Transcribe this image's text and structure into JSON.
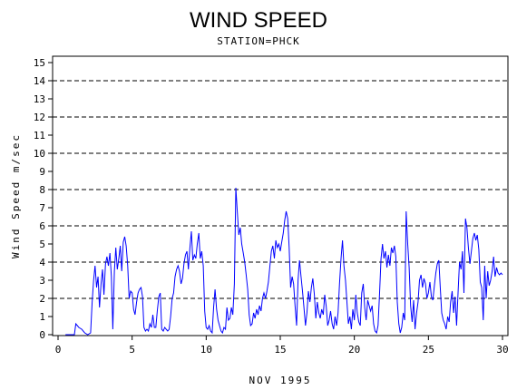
{
  "chart_data": {
    "type": "line",
    "title": "WIND SPEED",
    "subtitle": "STATION=PHCK",
    "xlabel": "NOV 1995",
    "ylabel": "Wind Speed m/sec",
    "xlim": [
      0,
      30
    ],
    "ylim": [
      0,
      15
    ],
    "x_ticks": [
      0,
      5,
      10,
      15,
      20,
      25,
      30
    ],
    "y_ticks": [
      0,
      1,
      2,
      3,
      4,
      5,
      6,
      7,
      8,
      9,
      10,
      11,
      12,
      13,
      14,
      15
    ],
    "dashed_reference_lines": [
      2,
      4,
      6,
      8,
      10,
      12,
      14
    ],
    "series": [
      {
        "color": "#0000ff",
        "points": [
          [
            0.5,
            0.0
          ],
          [
            1.1,
            0.0
          ],
          [
            1.2,
            0.6
          ],
          [
            1.4,
            0.4
          ],
          [
            1.6,
            0.3
          ],
          [
            1.8,
            0.1
          ],
          [
            2.0,
            0.0
          ],
          [
            2.2,
            0.1
          ],
          [
            2.3,
            1.8
          ],
          [
            2.4,
            3.0
          ],
          [
            2.5,
            3.8
          ],
          [
            2.6,
            2.6
          ],
          [
            2.7,
            3.2
          ],
          [
            2.8,
            1.5
          ],
          [
            2.9,
            2.8
          ],
          [
            3.0,
            3.6
          ],
          [
            3.1,
            2.2
          ],
          [
            3.2,
            3.9
          ],
          [
            3.3,
            4.3
          ],
          [
            3.4,
            3.8
          ],
          [
            3.5,
            4.5
          ],
          [
            3.6,
            3.2
          ],
          [
            3.7,
            0.3
          ],
          [
            3.8,
            3.5
          ],
          [
            3.9,
            4.8
          ],
          [
            4.0,
            3.6
          ],
          [
            4.1,
            4.2
          ],
          [
            4.2,
            4.9
          ],
          [
            4.3,
            3.5
          ],
          [
            4.4,
            5.1
          ],
          [
            4.5,
            5.4
          ],
          [
            4.6,
            4.9
          ],
          [
            4.7,
            3.8
          ],
          [
            4.8,
            2.0
          ],
          [
            4.9,
            2.4
          ],
          [
            5.0,
            2.3
          ],
          [
            5.1,
            1.4
          ],
          [
            5.2,
            1.1
          ],
          [
            5.3,
            1.8
          ],
          [
            5.4,
            2.3
          ],
          [
            5.5,
            2.5
          ],
          [
            5.6,
            2.6
          ],
          [
            5.7,
            2.1
          ],
          [
            5.8,
            0.4
          ],
          [
            5.9,
            0.2
          ],
          [
            6.0,
            0.3
          ],
          [
            6.1,
            0.2
          ],
          [
            6.2,
            0.6
          ],
          [
            6.3,
            0.4
          ],
          [
            6.4,
            1.1
          ],
          [
            6.5,
            0.4
          ],
          [
            6.6,
            0.4
          ],
          [
            6.7,
            1.3
          ],
          [
            6.8,
            2.1
          ],
          [
            6.9,
            2.3
          ],
          [
            7.0,
            0.3
          ],
          [
            7.1,
            0.2
          ],
          [
            7.2,
            0.4
          ],
          [
            7.3,
            0.3
          ],
          [
            7.4,
            0.2
          ],
          [
            7.5,
            0.3
          ],
          [
            7.6,
            1.0
          ],
          [
            7.7,
            2.0
          ],
          [
            7.8,
            2.3
          ],
          [
            7.9,
            3.2
          ],
          [
            8.0,
            3.6
          ],
          [
            8.1,
            3.8
          ],
          [
            8.2,
            3.5
          ],
          [
            8.3,
            2.8
          ],
          [
            8.4,
            3.1
          ],
          [
            8.5,
            3.9
          ],
          [
            8.6,
            4.4
          ],
          [
            8.7,
            4.6
          ],
          [
            8.8,
            3.6
          ],
          [
            8.9,
            4.8
          ],
          [
            9.0,
            5.7
          ],
          [
            9.1,
            4.1
          ],
          [
            9.2,
            4.4
          ],
          [
            9.3,
            4.2
          ],
          [
            9.4,
            5.0
          ],
          [
            9.5,
            5.6
          ],
          [
            9.6,
            4.2
          ],
          [
            9.7,
            4.6
          ],
          [
            9.8,
            3.8
          ],
          [
            9.9,
            1.3
          ],
          [
            10.0,
            0.4
          ],
          [
            10.1,
            0.3
          ],
          [
            10.2,
            0.5
          ],
          [
            10.3,
            0.2
          ],
          [
            10.4,
            0.1
          ],
          [
            10.5,
            1.5
          ],
          [
            10.6,
            2.5
          ],
          [
            10.7,
            1.4
          ],
          [
            10.8,
            0.8
          ],
          [
            10.9,
            0.5
          ],
          [
            11.0,
            0.2
          ],
          [
            11.1,
            0.1
          ],
          [
            11.2,
            0.4
          ],
          [
            11.3,
            0.3
          ],
          [
            11.4,
            1.5
          ],
          [
            11.5,
            0.8
          ],
          [
            11.6,
            0.9
          ],
          [
            11.7,
            1.5
          ],
          [
            11.8,
            1.1
          ],
          [
            11.9,
            2.8
          ],
          [
            12.0,
            8.1
          ],
          [
            12.1,
            6.8
          ],
          [
            12.2,
            5.5
          ],
          [
            12.3,
            5.9
          ],
          [
            12.4,
            5.0
          ],
          [
            12.5,
            4.5
          ],
          [
            12.6,
            4.0
          ],
          [
            12.7,
            3.3
          ],
          [
            12.8,
            2.5
          ],
          [
            12.9,
            1.1
          ],
          [
            13.0,
            0.5
          ],
          [
            13.1,
            0.6
          ],
          [
            13.2,
            1.2
          ],
          [
            13.3,
            0.9
          ],
          [
            13.4,
            1.4
          ],
          [
            13.5,
            1.1
          ],
          [
            13.6,
            1.6
          ],
          [
            13.7,
            1.3
          ],
          [
            13.8,
            2.0
          ],
          [
            13.9,
            2.3
          ],
          [
            14.0,
            2.0
          ],
          [
            14.1,
            2.4
          ],
          [
            14.2,
            2.9
          ],
          [
            14.3,
            3.8
          ],
          [
            14.4,
            4.6
          ],
          [
            14.5,
            4.9
          ],
          [
            14.6,
            4.2
          ],
          [
            14.7,
            5.2
          ],
          [
            14.8,
            4.8
          ],
          [
            14.9,
            5.0
          ],
          [
            15.0,
            4.6
          ],
          [
            15.1,
            5.1
          ],
          [
            15.2,
            5.6
          ],
          [
            15.3,
            6.3
          ],
          [
            15.4,
            6.8
          ],
          [
            15.5,
            6.4
          ],
          [
            15.6,
            4.8
          ],
          [
            15.7,
            2.6
          ],
          [
            15.8,
            3.2
          ],
          [
            15.9,
            2.8
          ],
          [
            16.0,
            1.6
          ],
          [
            16.1,
            0.5
          ],
          [
            16.2,
            3.0
          ],
          [
            16.3,
            4.1
          ],
          [
            16.4,
            3.2
          ],
          [
            16.5,
            2.4
          ],
          [
            16.6,
            1.5
          ],
          [
            16.7,
            0.5
          ],
          [
            16.8,
            1.2
          ],
          [
            16.9,
            2.4
          ],
          [
            17.0,
            1.8
          ],
          [
            17.1,
            2.6
          ],
          [
            17.2,
            3.1
          ],
          [
            17.3,
            2.2
          ],
          [
            17.4,
            0.9
          ],
          [
            17.5,
            1.8
          ],
          [
            17.6,
            1.2
          ],
          [
            17.7,
            0.9
          ],
          [
            17.8,
            1.4
          ],
          [
            17.9,
            1.1
          ],
          [
            18.0,
            2.2
          ],
          [
            18.1,
            1.6
          ],
          [
            18.2,
            0.5
          ],
          [
            18.3,
            0.8
          ],
          [
            18.4,
            1.3
          ],
          [
            18.5,
            0.6
          ],
          [
            18.6,
            0.3
          ],
          [
            18.7,
            1.0
          ],
          [
            18.8,
            0.5
          ],
          [
            18.9,
            1.2
          ],
          [
            19.0,
            2.8
          ],
          [
            19.1,
            4.2
          ],
          [
            19.2,
            5.2
          ],
          [
            19.3,
            3.8
          ],
          [
            19.4,
            3.0
          ],
          [
            19.5,
            1.8
          ],
          [
            19.6,
            0.6
          ],
          [
            19.7,
            1.0
          ],
          [
            19.8,
            0.3
          ],
          [
            19.9,
            1.4
          ],
          [
            20.0,
            0.8
          ],
          [
            20.1,
            2.2
          ],
          [
            20.2,
            1.2
          ],
          [
            20.3,
            0.7
          ],
          [
            20.4,
            0.5
          ],
          [
            20.5,
            2.3
          ],
          [
            20.6,
            2.8
          ],
          [
            20.7,
            1.5
          ],
          [
            20.8,
            0.8
          ],
          [
            20.9,
            1.9
          ],
          [
            21.0,
            1.6
          ],
          [
            21.1,
            1.3
          ],
          [
            21.2,
            1.6
          ],
          [
            21.3,
            0.6
          ],
          [
            21.4,
            0.2
          ],
          [
            21.5,
            0.1
          ],
          [
            21.6,
            0.5
          ],
          [
            21.7,
            2.2
          ],
          [
            21.8,
            4.2
          ],
          [
            21.9,
            5.0
          ],
          [
            22.0,
            4.2
          ],
          [
            22.1,
            4.6
          ],
          [
            22.2,
            3.7
          ],
          [
            22.3,
            4.4
          ],
          [
            22.4,
            3.8
          ],
          [
            22.5,
            4.8
          ],
          [
            22.6,
            4.5
          ],
          [
            22.7,
            4.9
          ],
          [
            22.8,
            4.3
          ],
          [
            22.9,
            1.8
          ],
          [
            23.0,
            0.6
          ],
          [
            23.1,
            0.1
          ],
          [
            23.2,
            0.4
          ],
          [
            23.3,
            1.2
          ],
          [
            23.4,
            0.8
          ],
          [
            23.5,
            6.8
          ],
          [
            23.6,
            5.0
          ],
          [
            23.7,
            3.7
          ],
          [
            23.8,
            1.6
          ],
          [
            23.9,
            0.7
          ],
          [
            24.0,
            1.9
          ],
          [
            24.1,
            0.3
          ],
          [
            24.2,
            1.2
          ],
          [
            24.3,
            1.8
          ],
          [
            24.4,
            3.0
          ],
          [
            24.5,
            3.3
          ],
          [
            24.6,
            2.6
          ],
          [
            24.7,
            3.1
          ],
          [
            24.8,
            2.8
          ],
          [
            24.9,
            2.0
          ],
          [
            25.0,
            2.3
          ],
          [
            25.1,
            2.9
          ],
          [
            25.2,
            2.1
          ],
          [
            25.3,
            1.9
          ],
          [
            25.4,
            2.7
          ],
          [
            25.5,
            3.4
          ],
          [
            25.6,
            3.9
          ],
          [
            25.7,
            4.1
          ],
          [
            25.8,
            2.6
          ],
          [
            25.9,
            1.2
          ],
          [
            26.0,
            0.8
          ],
          [
            26.1,
            0.6
          ],
          [
            26.2,
            0.3
          ],
          [
            26.3,
            1.0
          ],
          [
            26.4,
            0.7
          ],
          [
            26.5,
            1.8
          ],
          [
            26.6,
            2.4
          ],
          [
            26.7,
            1.2
          ],
          [
            26.8,
            2.1
          ],
          [
            26.9,
            0.5
          ],
          [
            27.0,
            2.3
          ],
          [
            27.1,
            4.0
          ],
          [
            27.2,
            3.6
          ],
          [
            27.3,
            4.6
          ],
          [
            27.4,
            2.3
          ],
          [
            27.5,
            6.4
          ],
          [
            27.6,
            5.9
          ],
          [
            27.7,
            4.8
          ],
          [
            27.8,
            3.9
          ],
          [
            27.9,
            4.6
          ],
          [
            28.0,
            5.3
          ],
          [
            28.1,
            5.6
          ],
          [
            28.2,
            5.2
          ],
          [
            28.3,
            5.5
          ],
          [
            28.4,
            4.7
          ],
          [
            28.5,
            2.9
          ],
          [
            28.6,
            2.6
          ],
          [
            28.7,
            0.8
          ],
          [
            28.8,
            3.8
          ],
          [
            28.9,
            2.0
          ],
          [
            29.0,
            3.5
          ],
          [
            29.1,
            2.7
          ],
          [
            29.2,
            3.0
          ],
          [
            29.3,
            3.5
          ],
          [
            29.4,
            4.3
          ],
          [
            29.5,
            3.2
          ],
          [
            29.6,
            3.7
          ],
          [
            29.7,
            3.4
          ],
          [
            29.8,
            3.3
          ],
          [
            29.9,
            3.4
          ],
          [
            30.0,
            3.3
          ]
        ]
      }
    ]
  }
}
